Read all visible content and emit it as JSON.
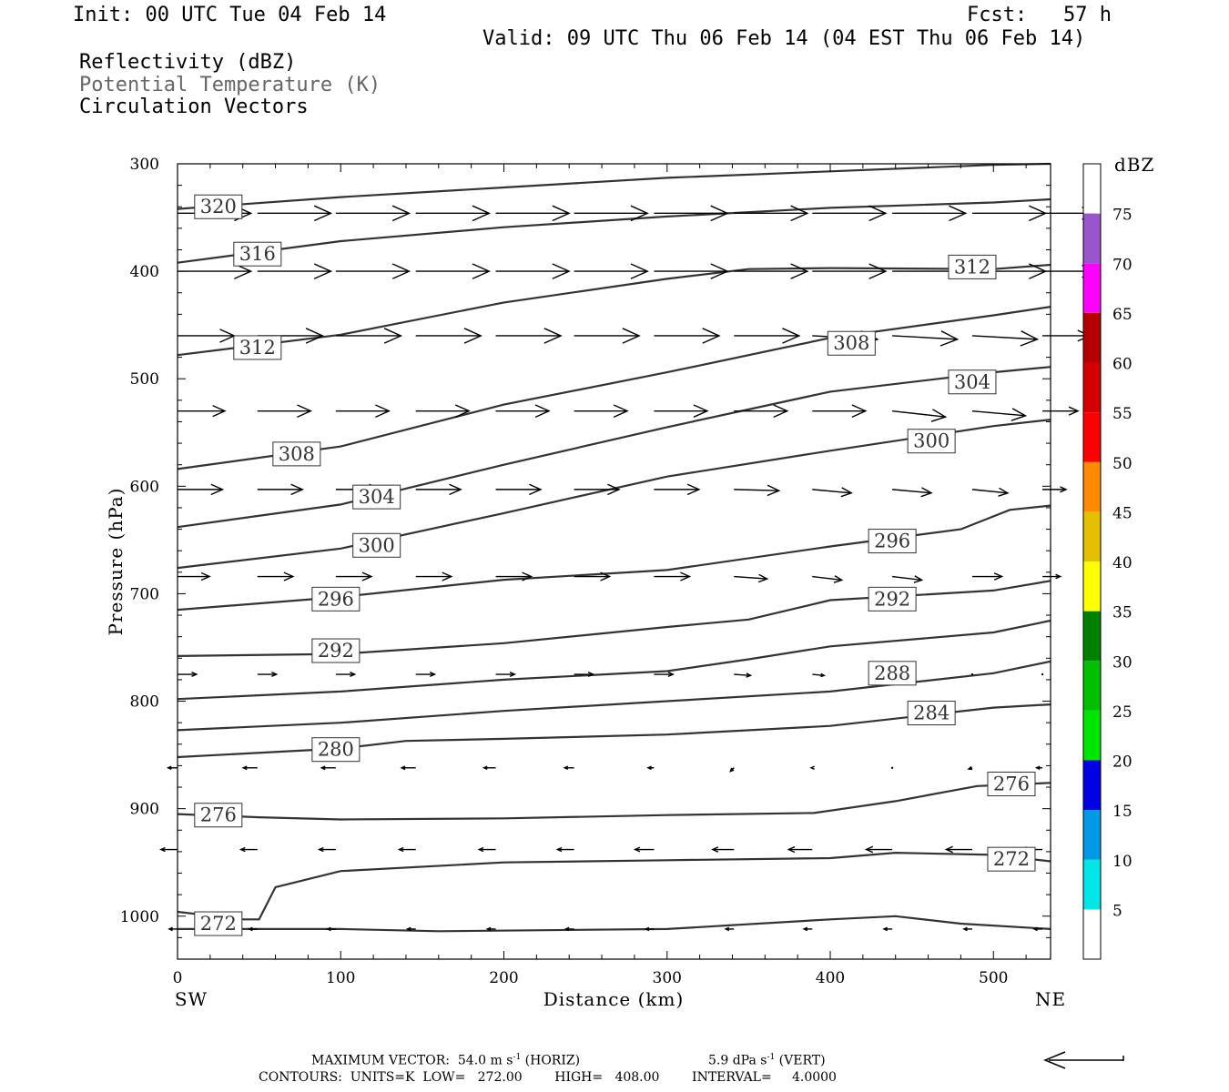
{
  "header": {
    "init": "Init: 00 UTC Tue 04 Feb 14",
    "fcst": "Fcst:   57 h",
    "valid": "Valid: 09 UTC Thu 06 Feb 14 (04 EST Thu 06 Feb 14)",
    "legend1": "Reflectivity (dBZ)",
    "legend2": "Potential Temperature (K)",
    "legend3": "Circulation Vectors"
  },
  "axes": {
    "ylabel": "Pressure (hPa)",
    "xlabel": "Distance (km)",
    "left_end": "SW",
    "right_end": "NE"
  },
  "footer": {
    "max_vector": "MAXIMUM VECTOR:  54.0 m s",
    "max_vector_exp1": "-1",
    "max_vector_horiz": " (HORIZ)",
    "max_vector_vert": "5.9 dPa s",
    "max_vector_exp2": "-1",
    "max_vector_vert_tail": " (VERT)",
    "contours": "CONTOURS:  UNITS=K  LOW=   272.00        HIGH=   408.00        INTERVAL=     4.0000"
  },
  "colorbar": {
    "unit": "dBZ",
    "labels": [
      "5",
      "10",
      "15",
      "20",
      "25",
      "30",
      "35",
      "40",
      "45",
      "50",
      "55",
      "60",
      "65",
      "70",
      "75"
    ],
    "colors": [
      "#00e5e5",
      "#0099e5",
      "#0000e5",
      "#00e500",
      "#00c000",
      "#008000",
      "#ffff00",
      "#e5c000",
      "#ff8c00",
      "#ff0000",
      "#d40000",
      "#b40000",
      "#ff00ff",
      "#9955cc",
      "#ffffff"
    ]
  },
  "chart_data": {
    "type": "line",
    "title": "",
    "xlabel": "Distance (km)",
    "ylabel": "Pressure (hPa)",
    "xlim": [
      0,
      535
    ],
    "ylim": [
      300,
      1040
    ],
    "y_inverted": true,
    "x_ticks": [
      0,
      100,
      200,
      300,
      400,
      500
    ],
    "y_ticks": [
      300,
      400,
      500,
      600,
      700,
      800,
      900,
      1000
    ],
    "series": [
      {
        "name": "320",
        "x": [
          0,
          100,
          200,
          300,
          400,
          500,
          535
        ],
        "y": [
          342,
          331,
          322,
          313,
          307,
          301,
          300
        ]
      },
      {
        "name": "316",
        "x": [
          0,
          100,
          200,
          300,
          400,
          500,
          535
        ],
        "y": [
          392,
          372,
          359,
          349,
          341,
          336,
          333
        ]
      },
      {
        "name": "312",
        "x": [
          0,
          100,
          200,
          300,
          350,
          400,
          500,
          535
        ],
        "y": [
          478,
          459,
          429,
          407,
          398,
          397,
          398,
          394
        ]
      },
      {
        "name": "308",
        "x": [
          0,
          100,
          200,
          300,
          400,
          500,
          535
        ],
        "y": [
          584,
          563,
          524,
          494,
          462,
          441,
          433
        ]
      },
      {
        "name": "304",
        "x": [
          0,
          100,
          200,
          300,
          400,
          500,
          535
        ],
        "y": [
          638,
          617,
          580,
          545,
          512,
          494,
          489
        ]
      },
      {
        "name": "300",
        "x": [
          0,
          100,
          200,
          300,
          400,
          500,
          535
        ],
        "y": [
          676,
          658,
          625,
          591,
          567,
          544,
          538
        ]
      },
      {
        "name": "296",
        "x": [
          0,
          100,
          200,
          300,
          400,
          480,
          510,
          535
        ],
        "y": [
          715,
          703,
          687,
          678,
          656,
          640,
          622,
          618
        ]
      },
      {
        "name": "292",
        "x": [
          0,
          100,
          200,
          300,
          350,
          400,
          500,
          535
        ],
        "y": [
          758,
          756,
          746,
          731,
          724,
          706,
          697,
          688
        ]
      },
      {
        "name": "288",
        "x": [
          0,
          100,
          200,
          300,
          350,
          400,
          500,
          535
        ],
        "y": [
          798,
          791,
          780,
          772,
          761,
          749,
          736,
          725
        ]
      },
      {
        "name": "284",
        "x": [
          0,
          100,
          200,
          300,
          400,
          500,
          535
        ],
        "y": [
          827,
          820,
          809,
          800,
          791,
          774,
          763
        ]
      },
      {
        "name": "280",
        "x": [
          0,
          100,
          140,
          200,
          300,
          400,
          500,
          535
        ],
        "y": [
          852,
          844,
          837,
          835,
          831,
          823,
          806,
          803
        ]
      },
      {
        "name": "276",
        "x": [
          0,
          50,
          100,
          200,
          300,
          390,
          440,
          490,
          535
        ],
        "y": [
          905,
          908,
          910,
          909,
          906,
          904,
          893,
          879,
          876
        ]
      },
      {
        "name": "272",
        "x": [
          0,
          40,
          50,
          60,
          100,
          200,
          300,
          400,
          440,
          500,
          535
        ],
        "y": [
          996,
          1003,
          1003,
          973,
          958,
          950,
          948,
          946,
          941,
          943,
          949
        ]
      },
      {
        "name": "",
        "x": [
          0,
          100,
          160,
          300,
          400,
          440,
          480,
          535
        ],
        "y": [
          1012,
          1012,
          1014,
          1012,
          1003,
          1000,
          1007,
          1012
        ]
      }
    ],
    "contour_labels": [
      {
        "text": "320",
        "x": 25,
        "y": 340
      },
      {
        "text": "316",
        "x": 49,
        "y": 384
      },
      {
        "text": "312",
        "x": 49,
        "y": 471
      },
      {
        "text": "312",
        "x": 487,
        "y": 396
      },
      {
        "text": "308",
        "x": 73,
        "y": 570
      },
      {
        "text": "308",
        "x": 413,
        "y": 467
      },
      {
        "text": "304",
        "x": 122,
        "y": 610
      },
      {
        "text": "304",
        "x": 487,
        "y": 503
      },
      {
        "text": "300",
        "x": 122,
        "y": 655
      },
      {
        "text": "300",
        "x": 462,
        "y": 558
      },
      {
        "text": "296",
        "x": 97,
        "y": 705
      },
      {
        "text": "296",
        "x": 438,
        "y": 651
      },
      {
        "text": "292",
        "x": 97,
        "y": 753
      },
      {
        "text": "292",
        "x": 438,
        "y": 705
      },
      {
        "text": "288",
        "x": 438,
        "y": 774
      },
      {
        "text": "284",
        "x": 462,
        "y": 811
      },
      {
        "text": "280",
        "x": 97,
        "y": 845
      },
      {
        "text": "276",
        "x": 25,
        "y": 906
      },
      {
        "text": "276",
        "x": 511,
        "y": 877
      },
      {
        "text": "272",
        "x": 511,
        "y": 947
      },
      {
        "text": "272",
        "x": 25,
        "y": 1007
      }
    ],
    "vector_columns_x": [
      0,
      49,
      97,
      146,
      195,
      243,
      292,
      341,
      389,
      438,
      487,
      530
    ],
    "vector_rows": [
      {
        "p": 346,
        "u": [
          6.2,
          6.2,
          6.2,
          6.2,
          6.2,
          6.2,
          6.2,
          6.2,
          6.2,
          6.2,
          6.2,
          4.5
        ],
        "v": [
          0,
          0,
          0,
          0,
          0,
          0,
          0,
          0,
          0,
          0,
          0,
          0
        ]
      },
      {
        "p": 400,
        "u": [
          6.2,
          6.2,
          6.2,
          6.2,
          6.2,
          6.2,
          6.2,
          6.2,
          6.2,
          6.2,
          6.2,
          4.5
        ],
        "v": [
          0,
          0,
          0,
          0,
          0,
          0,
          0,
          0,
          0,
          0,
          0,
          0
        ]
      },
      {
        "p": 460,
        "u": [
          4.8,
          5.5,
          5.5,
          5.5,
          5.5,
          5.5,
          5.5,
          5.5,
          5.5,
          5.5,
          5.5,
          4.0
        ],
        "v": [
          0,
          0,
          0,
          0,
          0,
          0,
          0,
          0,
          0.3,
          0.3,
          0.3,
          0
        ]
      },
      {
        "p": 530,
        "u": [
          4.0,
          4.5,
          4.5,
          4.5,
          4.5,
          4.5,
          4.5,
          4.5,
          4.5,
          4.5,
          4.5,
          3.0
        ],
        "v": [
          0,
          0,
          0,
          0,
          0,
          0,
          0,
          0,
          0,
          0.5,
          0.4,
          0
        ]
      },
      {
        "p": 603,
        "u": [
          3.8,
          3.8,
          3.8,
          3.8,
          3.8,
          3.8,
          3.8,
          3.8,
          3.3,
          3.3,
          3.0,
          2.0
        ],
        "v": [
          0,
          0,
          0,
          0,
          0,
          0,
          0,
          0.1,
          0.3,
          0.3,
          0.3,
          0
        ]
      },
      {
        "p": 684,
        "u": [
          2.7,
          3.0,
          3.0,
          3.0,
          3.0,
          3.0,
          3.0,
          2.8,
          2.5,
          2.5,
          2.5,
          1.5
        ],
        "v": [
          0,
          0,
          0,
          0,
          0,
          0,
          0,
          0.2,
          0.3,
          0.3,
          0,
          0
        ]
      },
      {
        "p": 775,
        "u": [
          1.6,
          1.6,
          1.6,
          1.6,
          1.6,
          1.6,
          1.6,
          1.4,
          1.0,
          1.0,
          0,
          0
        ],
        "v": [
          0,
          0,
          0,
          0,
          0,
          0,
          0,
          0.1,
          0.1,
          0.1,
          0,
          0
        ]
      },
      {
        "p": 862,
        "u": [
          -0.8,
          -1.2,
          -1.2,
          -1.2,
          -1.0,
          -0.8,
          -0.5,
          -0.3,
          -0.1,
          0,
          -0.3,
          -0.5
        ],
        "v": [
          0,
          0,
          0,
          0,
          0,
          0,
          0,
          0.3,
          0,
          0,
          0.1,
          0
        ]
      },
      {
        "p": 938,
        "u": [
          -1.4,
          -1.4,
          -1.4,
          -1.4,
          -1.4,
          -1.4,
          -1.6,
          -1.8,
          -2.0,
          -2.2,
          -2.2,
          -1.8
        ],
        "v": [
          0,
          0,
          0,
          0,
          0,
          0,
          0,
          0,
          0,
          0,
          0,
          0
        ]
      },
      {
        "p": 1012,
        "u": [
          -0.7,
          -0.7,
          -0.7,
          -0.7,
          -0.7,
          -0.7,
          -0.7,
          -0.7,
          -0.7,
          -0.7,
          -0.7,
          -0.7
        ],
        "v": [
          0,
          0,
          0,
          0,
          0,
          0,
          0,
          0,
          0,
          0,
          0,
          0
        ]
      }
    ],
    "reference_vector": {
      "u": -54.0,
      "label": "54.0 m s-1"
    }
  }
}
